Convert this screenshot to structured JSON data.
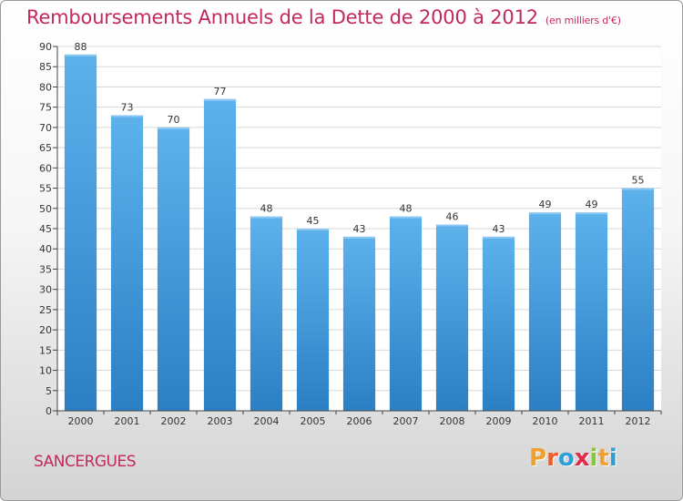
{
  "title": "Remboursements Annuels de la Dette de 2000 à 2012",
  "subtitle": "(en milliers d'€)",
  "commune": "SANCERGUES",
  "logo": {
    "letters": [
      "P",
      "r",
      "o",
      "x",
      "i",
      "t",
      "i"
    ],
    "colors": [
      "#f0a030",
      "#e8602a",
      "#2f9fd8",
      "#e02c4a",
      "#8cc43f",
      "#f0a030",
      "#2f9fd8"
    ]
  },
  "colors": {
    "bar_top": "#5db2ec",
    "bar_bottom": "#2b7fc4",
    "title": "#c3285e"
  },
  "chart_data": {
    "type": "bar",
    "categories": [
      "2000",
      "2001",
      "2002",
      "2003",
      "2004",
      "2005",
      "2006",
      "2007",
      "2008",
      "2009",
      "2010",
      "2011",
      "2012"
    ],
    "values": [
      88,
      73,
      70,
      77,
      48,
      45,
      43,
      48,
      46,
      43,
      49,
      49,
      55
    ],
    "ylim": [
      0,
      90
    ],
    "yticks": [
      0,
      5,
      10,
      15,
      20,
      25,
      30,
      35,
      40,
      45,
      50,
      55,
      60,
      65,
      70,
      75,
      80,
      85,
      90
    ],
    "grid": true,
    "data_labels": true
  }
}
